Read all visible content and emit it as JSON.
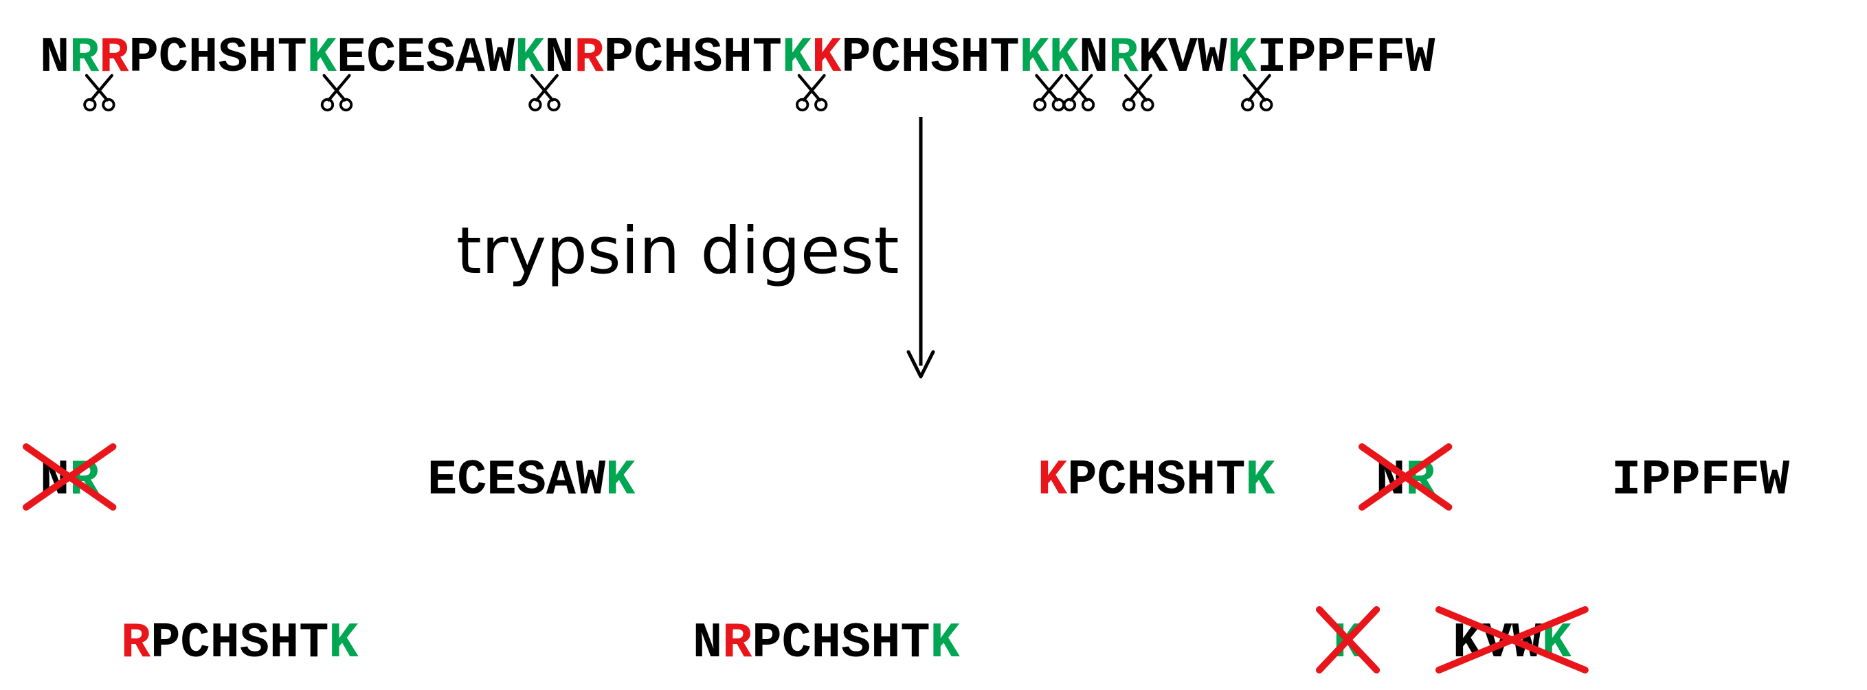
{
  "colors": {
    "default": "#000000",
    "cleaved": "#00A651",
    "blocked": "#E8161B",
    "strike": "#E8161B",
    "arrow": "#000000"
  },
  "icons": {
    "cleavage_site": "scissors-icon",
    "discarded": "red-x-strike"
  },
  "sequence": {
    "residues": [
      {
        "c": "N",
        "t": "default"
      },
      {
        "c": "R",
        "t": "cleaved",
        "cut": true
      },
      {
        "c": "R",
        "t": "blocked"
      },
      {
        "c": "P",
        "t": "default"
      },
      {
        "c": "C",
        "t": "default"
      },
      {
        "c": "H",
        "t": "default"
      },
      {
        "c": "S",
        "t": "default"
      },
      {
        "c": "H",
        "t": "default"
      },
      {
        "c": "T",
        "t": "default"
      },
      {
        "c": "K",
        "t": "cleaved",
        "cut": true
      },
      {
        "c": "E",
        "t": "default"
      },
      {
        "c": "C",
        "t": "default"
      },
      {
        "c": "E",
        "t": "default"
      },
      {
        "c": "S",
        "t": "default"
      },
      {
        "c": "A",
        "t": "default"
      },
      {
        "c": "W",
        "t": "default"
      },
      {
        "c": "K",
        "t": "cleaved",
        "cut": true
      },
      {
        "c": "N",
        "t": "default"
      },
      {
        "c": "R",
        "t": "blocked"
      },
      {
        "c": "P",
        "t": "default"
      },
      {
        "c": "C",
        "t": "default"
      },
      {
        "c": "H",
        "t": "default"
      },
      {
        "c": "S",
        "t": "default"
      },
      {
        "c": "H",
        "t": "default"
      },
      {
        "c": "T",
        "t": "default"
      },
      {
        "c": "K",
        "t": "cleaved",
        "cut": true
      },
      {
        "c": "K",
        "t": "blocked"
      },
      {
        "c": "P",
        "t": "default"
      },
      {
        "c": "C",
        "t": "default"
      },
      {
        "c": "H",
        "t": "default"
      },
      {
        "c": "S",
        "t": "default"
      },
      {
        "c": "H",
        "t": "default"
      },
      {
        "c": "T",
        "t": "default"
      },
      {
        "c": "K",
        "t": "cleaved",
        "cut": true
      },
      {
        "c": "K",
        "t": "cleaved",
        "cut": true
      },
      {
        "c": "N",
        "t": "default"
      },
      {
        "c": "R",
        "t": "cleaved",
        "cut": true
      },
      {
        "c": "K",
        "t": "default"
      },
      {
        "c": "V",
        "t": "default"
      },
      {
        "c": "W",
        "t": "default"
      },
      {
        "c": "K",
        "t": "cleaved",
        "cut": true
      },
      {
        "c": "I",
        "t": "default"
      },
      {
        "c": "P",
        "t": "default"
      },
      {
        "c": "P",
        "t": "default"
      },
      {
        "c": "F",
        "t": "default"
      },
      {
        "c": "F",
        "t": "default"
      },
      {
        "c": "W",
        "t": "default"
      }
    ]
  },
  "step_label": "trypsin digest",
  "fragments": [
    {
      "row": 1,
      "slot": 1,
      "discarded": true,
      "residues": [
        {
          "c": "N",
          "t": "default"
        },
        {
          "c": "R",
          "t": "cleaved"
        }
      ]
    },
    {
      "row": 1,
      "slot": 2,
      "discarded": false,
      "residues": [
        {
          "c": "E",
          "t": "default"
        },
        {
          "c": "C",
          "t": "default"
        },
        {
          "c": "E",
          "t": "default"
        },
        {
          "c": "S",
          "t": "default"
        },
        {
          "c": "A",
          "t": "default"
        },
        {
          "c": "W",
          "t": "default"
        },
        {
          "c": "K",
          "t": "cleaved"
        }
      ]
    },
    {
      "row": 1,
      "slot": 3,
      "discarded": false,
      "residues": [
        {
          "c": "K",
          "t": "blocked"
        },
        {
          "c": "P",
          "t": "default"
        },
        {
          "c": "C",
          "t": "default"
        },
        {
          "c": "H",
          "t": "default"
        },
        {
          "c": "S",
          "t": "default"
        },
        {
          "c": "H",
          "t": "default"
        },
        {
          "c": "T",
          "t": "default"
        },
        {
          "c": "K",
          "t": "cleaved"
        }
      ]
    },
    {
      "row": 1,
      "slot": 4,
      "discarded": true,
      "residues": [
        {
          "c": "N",
          "t": "default"
        },
        {
          "c": "R",
          "t": "cleaved"
        }
      ]
    },
    {
      "row": 1,
      "slot": 5,
      "discarded": false,
      "residues": [
        {
          "c": "I",
          "t": "default"
        },
        {
          "c": "P",
          "t": "default"
        },
        {
          "c": "P",
          "t": "default"
        },
        {
          "c": "F",
          "t": "default"
        },
        {
          "c": "F",
          "t": "default"
        },
        {
          "c": "W",
          "t": "default"
        }
      ]
    },
    {
      "row": 2,
      "slot": 1,
      "discarded": false,
      "residues": [
        {
          "c": "R",
          "t": "blocked"
        },
        {
          "c": "P",
          "t": "default"
        },
        {
          "c": "C",
          "t": "default"
        },
        {
          "c": "H",
          "t": "default"
        },
        {
          "c": "S",
          "t": "default"
        },
        {
          "c": "H",
          "t": "default"
        },
        {
          "c": "T",
          "t": "default"
        },
        {
          "c": "K",
          "t": "cleaved"
        }
      ]
    },
    {
      "row": 2,
      "slot": 2,
      "discarded": false,
      "residues": [
        {
          "c": "N",
          "t": "default"
        },
        {
          "c": "R",
          "t": "blocked"
        },
        {
          "c": "P",
          "t": "default"
        },
        {
          "c": "C",
          "t": "default"
        },
        {
          "c": "H",
          "t": "default"
        },
        {
          "c": "S",
          "t": "default"
        },
        {
          "c": "H",
          "t": "default"
        },
        {
          "c": "T",
          "t": "default"
        },
        {
          "c": "K",
          "t": "cleaved"
        }
      ]
    },
    {
      "row": 2,
      "slot": 3,
      "discarded": true,
      "residues": [
        {
          "c": "K",
          "t": "cleaved"
        }
      ]
    },
    {
      "row": 2,
      "slot": 4,
      "discarded": true,
      "residues": [
        {
          "c": "K",
          "t": "default"
        },
        {
          "c": "V",
          "t": "default"
        },
        {
          "c": "W",
          "t": "default"
        },
        {
          "c": "K",
          "t": "cleaved"
        }
      ]
    }
  ]
}
